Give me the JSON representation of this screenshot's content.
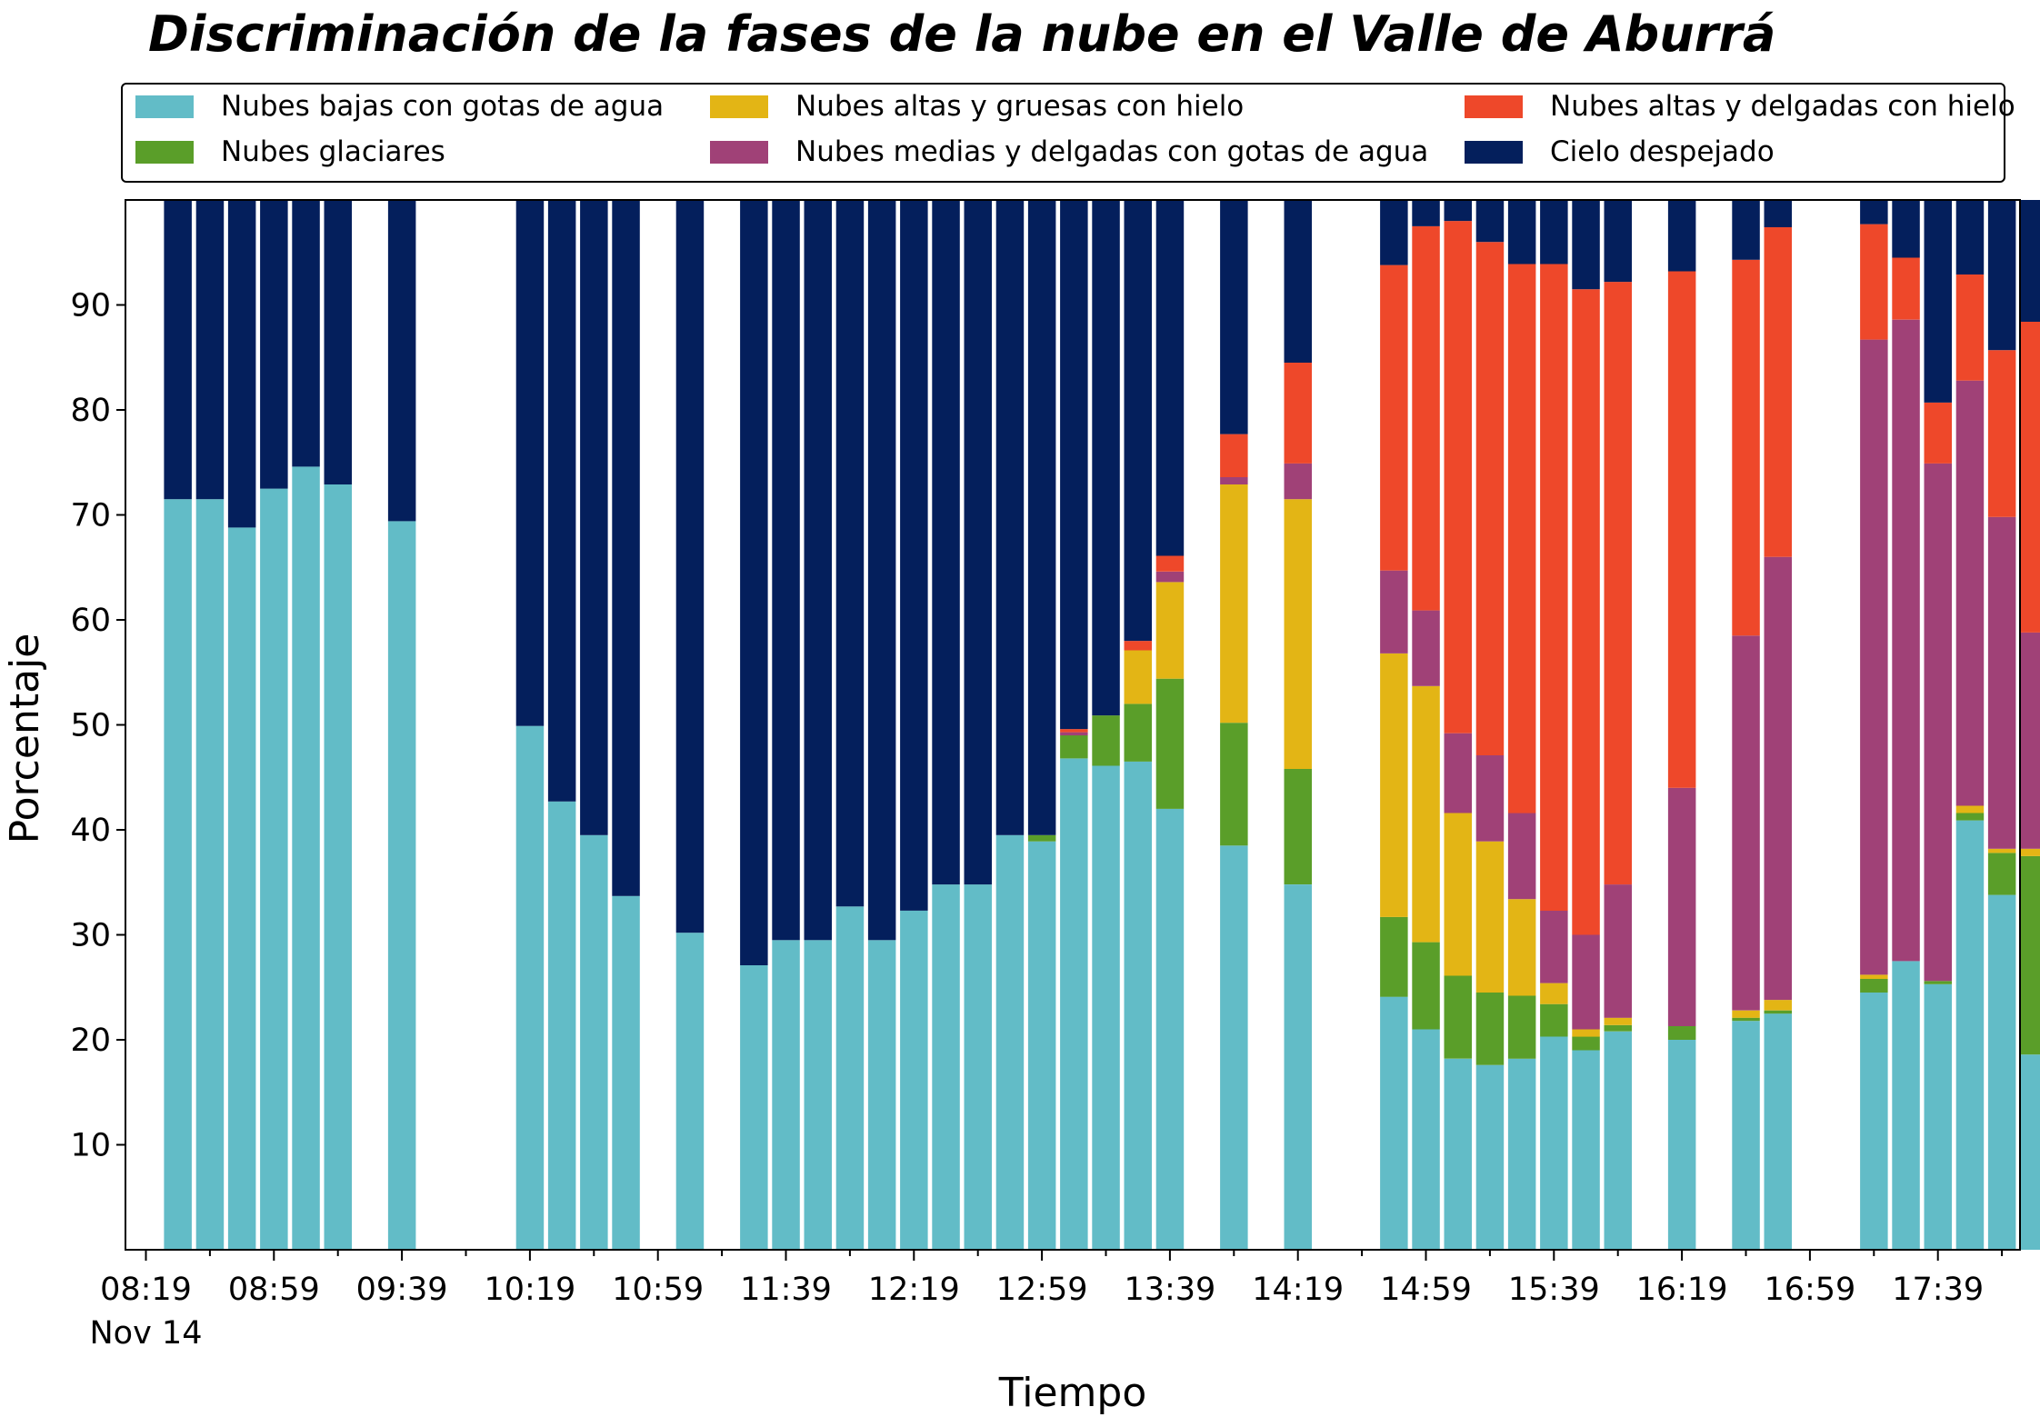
{
  "chart_data": {
    "type": "bar",
    "stacked": true,
    "title": "Discriminación de la fases de la nube en el Valle de Aburrá",
    "xlabel": "Tiempo",
    "ylabel": "Porcentaje",
    "ylim": [
      0,
      100
    ],
    "yticks": [
      10,
      20,
      30,
      40,
      50,
      60,
      70,
      80,
      90
    ],
    "xticks": [
      {
        "slot": 0,
        "label": "08:19",
        "sublabel": "Nov 14"
      },
      {
        "slot": 4,
        "label": "08:59"
      },
      {
        "slot": 8,
        "label": "09:39"
      },
      {
        "slot": 12,
        "label": "10:19"
      },
      {
        "slot": 16,
        "label": "10:59"
      },
      {
        "slot": 20,
        "label": "11:39"
      },
      {
        "slot": 24,
        "label": "12:19"
      },
      {
        "slot": 28,
        "label": "12:59"
      },
      {
        "slot": 32,
        "label": "13:39"
      },
      {
        "slot": 36,
        "label": "14:19"
      },
      {
        "slot": 40,
        "label": "14:59"
      },
      {
        "slot": 44,
        "label": "15:39"
      },
      {
        "slot": 48,
        "label": "16:19"
      },
      {
        "slot": 52,
        "label": "16:59"
      },
      {
        "slot": 56,
        "label": "17:39"
      }
    ],
    "x_minor_step_slots": 2,
    "legend_placement": "top, above plot, 3 columns",
    "series": [
      {
        "name": "Nubes bajas con gotas de agua",
        "color": "#62bcc7"
      },
      {
        "name": "Nubes glaciares",
        "color": "#5a9e29"
      },
      {
        "name": "Nubes altas y gruesas con hielo",
        "color": "#e3b515"
      },
      {
        "name": "Nubes medias y delgadas con gotas de agua",
        "color": "#a04177"
      },
      {
        "name": "Nubes altas y delgadas con hielo",
        "color": "#ee482a"
      },
      {
        "name": "Cielo despejado",
        "color": "#041f5c"
      }
    ],
    "bars": [
      {
        "slot": 1,
        "values": [
          71.5,
          0,
          0,
          0,
          0,
          28.5
        ]
      },
      {
        "slot": 2,
        "values": [
          71.5,
          0,
          0,
          0,
          0,
          28.5
        ]
      },
      {
        "slot": 3,
        "values": [
          68.8,
          0,
          0,
          0,
          0,
          31.2
        ]
      },
      {
        "slot": 4,
        "values": [
          72.5,
          0,
          0,
          0,
          0,
          27.5
        ]
      },
      {
        "slot": 5,
        "values": [
          74.6,
          0,
          0,
          0,
          0,
          25.4
        ]
      },
      {
        "slot": 6,
        "values": [
          72.9,
          0,
          0,
          0,
          0,
          27.1
        ]
      },
      {
        "slot": 8,
        "values": [
          69.4,
          0,
          0,
          0,
          0,
          30.6
        ]
      },
      {
        "slot": 12,
        "values": [
          49.9,
          0,
          0,
          0,
          0,
          50.1
        ]
      },
      {
        "slot": 13,
        "values": [
          42.7,
          0,
          0,
          0,
          0,
          57.3
        ]
      },
      {
        "slot": 14,
        "values": [
          39.5,
          0,
          0,
          0,
          0,
          60.5
        ]
      },
      {
        "slot": 15,
        "values": [
          33.7,
          0,
          0,
          0,
          0,
          66.3
        ]
      },
      {
        "slot": 17,
        "values": [
          30.2,
          0,
          0,
          0,
          0,
          69.8
        ]
      },
      {
        "slot": 19,
        "values": [
          27.1,
          0,
          0,
          0,
          0,
          72.9
        ]
      },
      {
        "slot": 20,
        "values": [
          29.5,
          0,
          0,
          0,
          0,
          70.5
        ]
      },
      {
        "slot": 21,
        "values": [
          29.5,
          0,
          0,
          0,
          0,
          70.5
        ]
      },
      {
        "slot": 22,
        "values": [
          32.7,
          0,
          0,
          0,
          0,
          67.3
        ]
      },
      {
        "slot": 23,
        "values": [
          29.5,
          0,
          0,
          0,
          0,
          70.5
        ]
      },
      {
        "slot": 24,
        "values": [
          32.3,
          0,
          0,
          0,
          0,
          67.7
        ]
      },
      {
        "slot": 25,
        "values": [
          34.8,
          0,
          0,
          0,
          0,
          65.2
        ]
      },
      {
        "slot": 26,
        "values": [
          34.8,
          0,
          0,
          0,
          0,
          65.2
        ]
      },
      {
        "slot": 27,
        "values": [
          39.5,
          0,
          0,
          0,
          0,
          60.5
        ]
      },
      {
        "slot": 28,
        "values": [
          38.9,
          0.6,
          0,
          0,
          0,
          60.5
        ]
      },
      {
        "slot": 29,
        "values": [
          46.8,
          2.2,
          0,
          0.3,
          0.3,
          50.4
        ]
      },
      {
        "slot": 30,
        "values": [
          46.1,
          4.8,
          0,
          0,
          0,
          49.1
        ]
      },
      {
        "slot": 31,
        "values": [
          46.5,
          5.5,
          5.1,
          0,
          0.9,
          42.0
        ]
      },
      {
        "slot": 32,
        "values": [
          42.0,
          12.4,
          9.2,
          1.0,
          1.5,
          33.9
        ]
      },
      {
        "slot": 34,
        "values": [
          38.5,
          11.7,
          22.7,
          0.7,
          4.1,
          22.3
        ]
      },
      {
        "slot": 36,
        "values": [
          34.8,
          11.0,
          25.7,
          3.4,
          9.6,
          15.5
        ]
      },
      {
        "slot": 39,
        "values": [
          24.1,
          7.6,
          25.1,
          7.9,
          29.1,
          6.2
        ]
      },
      {
        "slot": 40,
        "values": [
          21.0,
          8.3,
          24.4,
          7.2,
          36.6,
          2.5
        ]
      },
      {
        "slot": 41,
        "values": [
          18.2,
          7.9,
          15.5,
          7.6,
          48.8,
          2.0
        ]
      },
      {
        "slot": 42,
        "values": [
          17.6,
          6.9,
          14.4,
          8.2,
          48.9,
          4.0
        ]
      },
      {
        "slot": 43,
        "values": [
          18.2,
          6.0,
          9.2,
          8.2,
          52.3,
          6.1
        ]
      },
      {
        "slot": 44,
        "values": [
          20.3,
          3.1,
          2.0,
          6.9,
          61.6,
          6.1
        ]
      },
      {
        "slot": 45,
        "values": [
          19.0,
          1.3,
          0.7,
          9.0,
          61.5,
          8.5
        ]
      },
      {
        "slot": 46,
        "values": [
          20.8,
          0.6,
          0.7,
          12.7,
          57.4,
          7.8
        ]
      },
      {
        "slot": 48,
        "values": [
          20.0,
          1.3,
          0,
          22.7,
          49.2,
          6.8
        ]
      },
      {
        "slot": 50,
        "values": [
          21.8,
          0.3,
          0.7,
          35.7,
          35.8,
          5.7
        ]
      },
      {
        "slot": 51,
        "values": [
          22.5,
          0.3,
          1.0,
          42.2,
          31.4,
          2.6
        ]
      },
      {
        "slot": 54,
        "values": [
          24.5,
          1.3,
          0.4,
          60.5,
          11.0,
          2.3
        ]
      },
      {
        "slot": 55,
        "values": [
          27.5,
          0,
          0,
          61.1,
          5.9,
          5.5
        ]
      },
      {
        "slot": 56,
        "values": [
          25.3,
          0.3,
          0,
          49.3,
          5.8,
          19.3
        ]
      },
      {
        "slot": 57,
        "values": [
          40.9,
          0.7,
          0.7,
          40.5,
          10.1,
          7.1
        ]
      },
      {
        "slot": 58,
        "values": [
          33.8,
          4.0,
          0.4,
          31.6,
          15.9,
          14.3
        ]
      },
      {
        "slot": 59,
        "values": [
          18.6,
          18.9,
          0.7,
          20.6,
          29.6,
          11.6
        ]
      }
    ]
  }
}
